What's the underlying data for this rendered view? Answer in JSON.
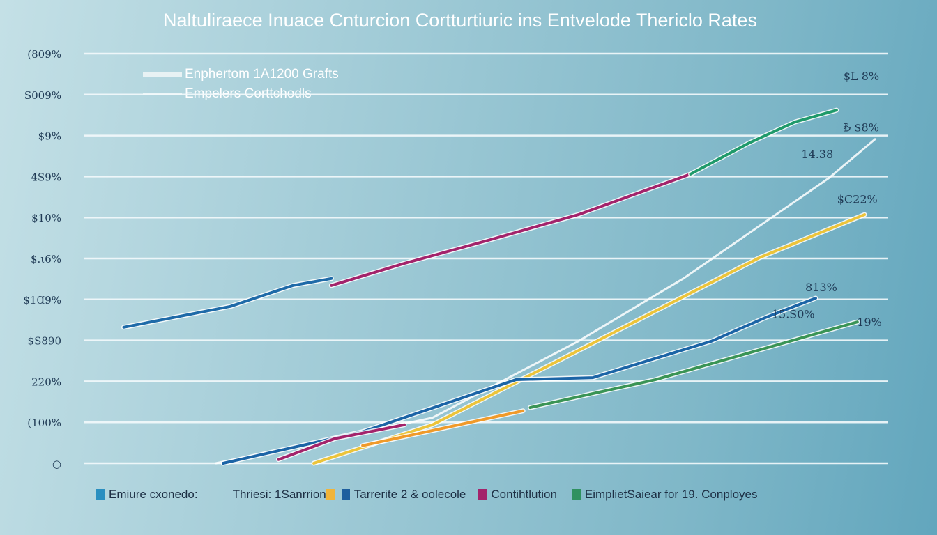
{
  "chart_data": {
    "type": "line",
    "title": "Naltuliraece Inuace Cnturcion Cortturtiuric ins Entvelode Thericlo Rates",
    "grid": true,
    "y_ticks": [
      "○",
      "(100%",
      "220%",
      "$S890",
      "$1Ɑ9%",
      "$.ι6%",
      "$10%",
      "4S9%",
      "$9%",
      "S009%",
      "(809%"
    ],
    "xlim": [
      0,
      100
    ],
    "ylim": [
      0,
      10
    ],
    "top_legend": [
      {
        "label": "Enphertom 1A1200 Grafts"
      },
      {
        "label": "Empelers Corttchodls"
      }
    ],
    "legend": [
      {
        "label": "Emiure cxonedo:",
        "color": "#2a8fc0"
      },
      {
        "label": "Thriesi: 1Sanrrion",
        "color": "#f0b43a"
      },
      {
        "label": "Tarrerite 2 & oolecole",
        "color": "#1e5f9e"
      },
      {
        "label": "Contihtlution",
        "color": "#a3236b"
      },
      {
        "label": "EimplietSaiear for 19. Conployes",
        "color": "#2f9160"
      }
    ],
    "series": [
      {
        "color": "#1e6aa8",
        "points": [
          [
            5,
            3.32
          ],
          [
            18.3,
            3.83
          ],
          [
            26.1,
            4.34
          ],
          [
            30.9,
            4.51
          ]
        ]
      },
      {
        "color": "#a3236b",
        "points": [
          [
            30.9,
            4.34
          ],
          [
            40,
            4.88
          ],
          [
            50.4,
            5.44
          ],
          [
            61.7,
            6.07
          ],
          [
            75.7,
            7.06
          ]
        ]
      },
      {
        "color": "#1f9a6a",
        "points": [
          [
            75.7,
            7.06
          ],
          [
            83,
            7.82
          ],
          [
            88.7,
            8.33
          ],
          [
            93.9,
            8.62
          ]
        ]
      },
      {
        "color": "#ffffff",
        "points": [
          [
            16.5,
            0
          ],
          [
            43.5,
            1.11
          ],
          [
            61.7,
            2.98
          ],
          [
            74.8,
            4.51
          ],
          [
            93,
            6.97
          ],
          [
            98.7,
            7.91
          ]
        ]
      },
      {
        "color": "#ecc43a",
        "points": [
          [
            28.7,
            0
          ],
          [
            43.5,
            0.94
          ],
          [
            64.3,
            3.01
          ],
          [
            84.3,
            5.02
          ],
          [
            97.4,
            6.07
          ]
        ]
      },
      {
        "color": "#1b64a6",
        "points": [
          [
            17.4,
            0
          ],
          [
            34.8,
            0.77
          ],
          [
            53.9,
            2.04
          ],
          [
            63.5,
            2.09
          ],
          [
            78.3,
            2.98
          ],
          [
            85.2,
            3.57
          ],
          [
            91.3,
            4.03
          ]
        ]
      },
      {
        "color": "#a3236b",
        "points": [
          [
            24.3,
            0.09
          ],
          [
            31.3,
            0.6
          ],
          [
            40,
            0.94
          ]
        ]
      },
      {
        "color": "#3a9455",
        "points": [
          [
            55.7,
            1.36
          ],
          [
            71.3,
            2.04
          ],
          [
            96.5,
            3.45
          ]
        ]
      },
      {
        "color": "#f09a2a",
        "points": [
          [
            34.8,
            0.43
          ],
          [
            54.8,
            1.28
          ]
        ]
      }
    ],
    "data_labels": [
      {
        "text": "$L 8%",
        "x": 97,
        "y": 9.35
      },
      {
        "text": "₺ $8%",
        "x": 97,
        "y": 8.1
      },
      {
        "text": "14.38",
        "x": 91.5,
        "y": 7.45
      },
      {
        "text": "$C22%",
        "x": 96.5,
        "y": 6.35
      },
      {
        "text": "813%",
        "x": 92,
        "y": 4.2
      },
      {
        "text": "15.S0%",
        "x": 88.5,
        "y": 3.55
      },
      {
        "text": "19%",
        "x": 98,
        "y": 3.35
      }
    ]
  }
}
